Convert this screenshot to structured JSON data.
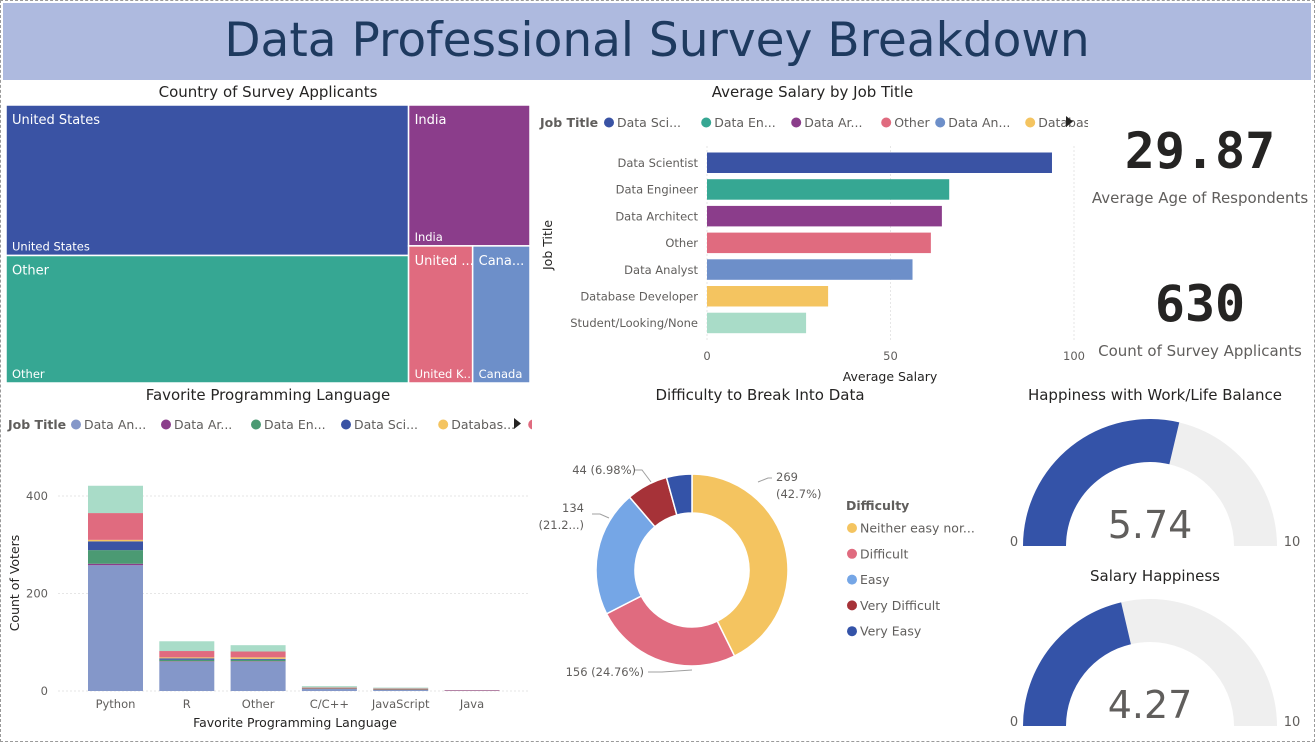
{
  "dashboard": {
    "title": "Data Professional Survey Breakdown"
  },
  "colors": {
    "us": "#3a53a4",
    "india": "#8b3d8b",
    "other": "#36a793",
    "uk": "#e06b7f",
    "canada": "#6d8fc9",
    "data_scientist": "#3a53a4",
    "data_engineer": "#36a793",
    "data_architect": "#8b3d8b",
    "other_job": "#e06b7f",
    "data_analyst": "#6d8fc9",
    "database_developer": "#f4c460",
    "student": "#a9dcc8",
    "gauge_fill": "#3453a8",
    "gauge_bg": "#efefef"
  },
  "cards": {
    "age": {
      "value": "29.87",
      "label": "Average Age of Respondents"
    },
    "count": {
      "value": "630",
      "label": "Count of Survey Applicants"
    }
  },
  "chart_data": [
    {
      "id": "treemap",
      "type": "treemap",
      "title": "Country of Survey Applicants",
      "items": [
        {
          "name": "United States",
          "header": "United States",
          "footer": "United States",
          "value": 262
        },
        {
          "name": "Other",
          "header": "Other",
          "footer": "Other",
          "value": 222
        },
        {
          "name": "India",
          "header": "India",
          "footer": "India",
          "value": 74
        },
        {
          "name": "United Kingdom",
          "header": "United ...",
          "footer": "United K...",
          "value": 38
        },
        {
          "name": "Canada",
          "header": "Cana...",
          "footer": "Canada",
          "value": 34
        }
      ]
    },
    {
      "id": "salary",
      "type": "bar",
      "orientation": "horizontal",
      "title": "Average Salary by Job Title",
      "legend_title": "Job Title",
      "legend": [
        "Data Sci...",
        "Data En...",
        "Data Ar...",
        "Other",
        "Data An...",
        "Databas..."
      ],
      "categories": [
        "Data Scientist",
        "Data Engineer",
        "Data Architect",
        "Other",
        "Data Analyst",
        "Database Developer",
        "Student/Looking/None"
      ],
      "values": [
        94,
        66,
        64,
        61,
        56,
        33,
        27
      ],
      "xlabel": "Average Salary",
      "ylabel": "Job Title",
      "xlim": [
        0,
        100
      ],
      "xticks": [
        "0",
        "50",
        "100"
      ]
    },
    {
      "id": "language",
      "type": "bar",
      "stacked": true,
      "title": "Favorite Programming Language",
      "legend_title": "Job Title",
      "legend": [
        "Data An...",
        "Data Ar...",
        "Data En...",
        "Data Sci...",
        "Databas...",
        "Other"
      ],
      "categories": [
        "Python",
        "R",
        "Other",
        "C/C++",
        "JavaScript",
        "Java"
      ],
      "series": [
        {
          "name": "Data Analyst",
          "values": [
            258,
            60,
            60,
            4,
            2,
            1
          ]
        },
        {
          "name": "Data Architect",
          "values": [
            3,
            1,
            1,
            0,
            0,
            0
          ]
        },
        {
          "name": "Data Engineer",
          "values": [
            28,
            3,
            3,
            1,
            1,
            0
          ]
        },
        {
          "name": "Data Scientist",
          "values": [
            18,
            3,
            2,
            0,
            0,
            0
          ]
        },
        {
          "name": "Database Developer",
          "values": [
            3,
            2,
            3,
            0,
            0,
            0
          ]
        },
        {
          "name": "Other",
          "values": [
            55,
            13,
            12,
            2,
            2,
            1
          ]
        },
        {
          "name": "Student/Looking/None",
          "values": [
            56,
            20,
            13,
            3,
            2,
            0
          ]
        }
      ],
      "xlabel": "Favorite Programming Language",
      "ylabel": "Count of Voters",
      "ylim": [
        0,
        400
      ],
      "yticks": [
        "0",
        "200",
        "400"
      ]
    },
    {
      "id": "difficulty",
      "type": "pie",
      "donut": true,
      "title": "Difficulty to Break Into Data",
      "legend_title": "Difficulty",
      "slices": [
        {
          "name": "Neither easy nor difficult",
          "legend": "Neither easy nor...",
          "value": 269,
          "label_value": "269",
          "label_pct": "(42.7%)"
        },
        {
          "name": "Difficult",
          "legend": "Difficult",
          "value": 156,
          "label_value": "156 (24.76%)",
          "label_pct": ""
        },
        {
          "name": "Easy",
          "legend": "Easy",
          "value": 134,
          "label_value": "134",
          "label_pct": "(21.2...)"
        },
        {
          "name": "Very Difficult",
          "legend": "Very Difficult",
          "value": 44,
          "label_value": "44 (6.98%)",
          "label_pct": ""
        },
        {
          "name": "Very Easy",
          "legend": "Very Easy",
          "value": 27,
          "label_value": "",
          "label_pct": ""
        }
      ],
      "slice_colors": [
        "#f4c460",
        "#e06b7f",
        "#75a6e6",
        "#a63238",
        "#3453a8"
      ]
    },
    {
      "id": "wlb",
      "type": "gauge",
      "title": "Happiness with Work/Life Balance",
      "value": 5.74,
      "value_label": "5.74",
      "min": 0,
      "max": 10,
      "min_label": "0",
      "max_label": "10"
    },
    {
      "id": "salary_happiness",
      "type": "gauge",
      "title": "Salary Happiness",
      "value": 4.27,
      "value_label": "4.27",
      "min": 0,
      "max": 10,
      "min_label": "0",
      "max_label": "10"
    }
  ]
}
